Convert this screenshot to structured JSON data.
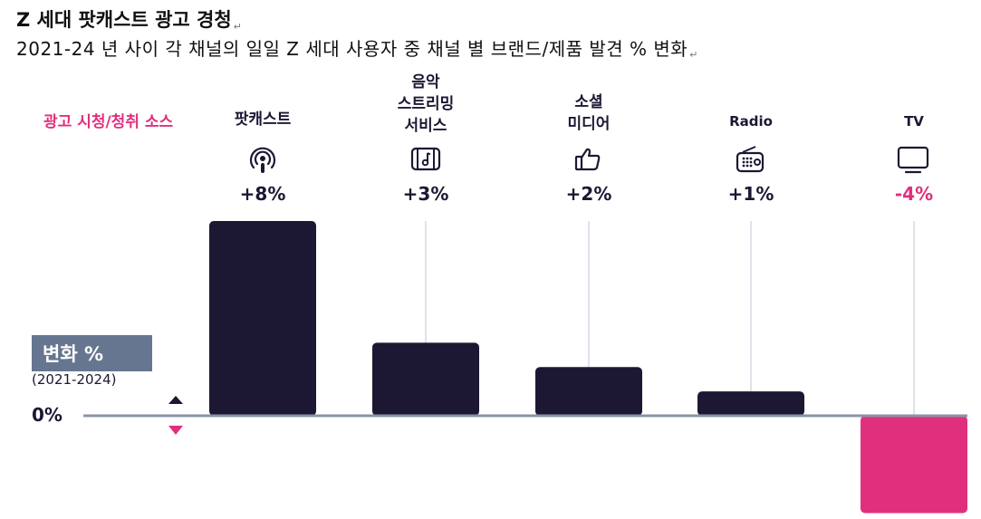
{
  "title": "Z 세대 팟캐스트 광고 경청",
  "subtitle": "2021-24 년 사이 각 채널의 일일 Z 세대 사용자 중 채널 별 브랜드/제품 발견 % 변화",
  "source_label": "광고 시청/청취 소스",
  "legend": {
    "title": "변화 %",
    "period": "(2021-2024)"
  },
  "zero_label": "0%",
  "colors": {
    "positive": "#1c1833",
    "negative": "#e0307d",
    "axis": "#8a94a8",
    "gridline": "#c9d0dc",
    "legend_box": "#677690"
  },
  "channels": [
    {
      "label_lines": [
        "팟캐스트"
      ],
      "icon": "podcast-icon",
      "pct_label": "+8%"
    },
    {
      "label_lines": [
        "음악",
        "스트리밍",
        "서비스"
      ],
      "icon": "music-streaming-icon",
      "pct_label": "+3%"
    },
    {
      "label_lines": [
        "소셜",
        "미디어"
      ],
      "icon": "thumbs-up-icon",
      "pct_label": "+2%"
    },
    {
      "label_lines": [
        "Radio"
      ],
      "icon": "radio-icon",
      "pct_label": "+1%"
    },
    {
      "label_lines": [
        "TV"
      ],
      "icon": "tv-icon",
      "pct_label": "-4%"
    }
  ],
  "chart_data": {
    "type": "bar",
    "categories": [
      "팟캐스트",
      "음악 스트리밍 서비스",
      "소셜 미디어",
      "Radio",
      "TV"
    ],
    "values": [
      8,
      3,
      2,
      1,
      -4
    ],
    "title": "Z 세대 팟캐스트 광고 경청",
    "xlabel": "",
    "ylabel": "변화 % (2021-2024)",
    "ylim": [
      -4,
      8
    ],
    "grid": false,
    "legend": "none"
  }
}
